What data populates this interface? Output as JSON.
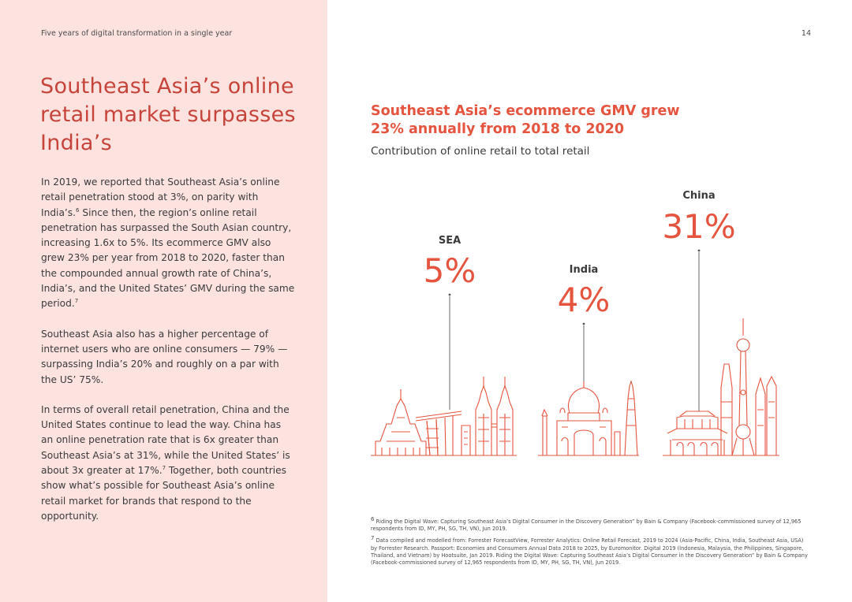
{
  "header": {
    "running_title": "Five years of digital transformation in a single year",
    "page_number": "14"
  },
  "left": {
    "title": "Southeast Asia’s online retail market surpasses India’s",
    "paragraphs": [
      {
        "text": "In 2019, we reported that Southeast Asia’s online retail penetration stood at 3%, on parity with India’s.",
        "sup": "6",
        "tail": " Since then, the region’s online retail penetration has surpassed the South Asian country, increasing 1.6x to 5%. Its ecommerce GMV also grew 23% per year from 2018 to 2020, faster than the compounded annual growth rate of China’s, India’s, and the United States’ GMV during the same period.",
        "sup2": "7"
      },
      {
        "text": "Southeast Asia also has a higher percentage of internet users who are online consumers — 79% — surpassing India’s 20% and roughly on a par with the US’ 75%."
      },
      {
        "text": "In terms of overall retail penetration, China and the United States continue to lead the way. China has an online penetration rate that is 6x greater than Southeast Asia’s at 31%, while the United States’ is about 3x greater at 17%.",
        "sup": "7",
        "tail": " Together, both countries show what’s possible for Southeast Asia’s online retail market for brands that respond to the opportunity."
      }
    ]
  },
  "chart_data": {
    "type": "bar",
    "title": "Southeast Asia’s ecommerce GMV grew 23% annually from 2018 to 2020",
    "subtitle": "Contribution of online retail to total retail",
    "categories": [
      "SEA",
      "India",
      "China"
    ],
    "values": [
      5,
      4,
      31
    ],
    "value_labels": [
      "5%",
      "4%",
      "31%"
    ],
    "unit": "%"
  },
  "footnotes": [
    {
      "sup": "6",
      "text": " Riding the Digital Wave: Capturing Southeast Asia’s Digital Consumer in the Discovery Generation” by Bain & Company (Facebook-commissioned survey of 12,965 respondents from ID, MY, PH, SG, TH, VN), Jun 2019."
    },
    {
      "sup": "7",
      "text": " Data compiled and modelled from: Forrester ForecastView, Forrester Analytics: Online Retail Forecast, 2019 to 2024 (Asia-Pacific, China, India, Southeast Asia, USA) by Forrester Research. Passport: Economies and Consumers Annual Data 2018 to 2025, by Euromonitor. Digital 2019 (Indonesia, Malaysia, the Philippines, Singapore, Thailand, and Vietnam) by Hootsuite, Jan 2019. Riding the Digital Wave: Capturing Southeast Asia’s Digital Consumer in the Discovery Generation” by Bain & Company (Facebook-commissioned survey of 12,965 respondents from ID, MY, PH, SG, TH, VN), Jun 2019."
    }
  ],
  "colors": {
    "accent": "#e5543f",
    "title_red": "#c6443a",
    "panel_bg": "#fde3e0",
    "illustration": "#e5543f"
  }
}
